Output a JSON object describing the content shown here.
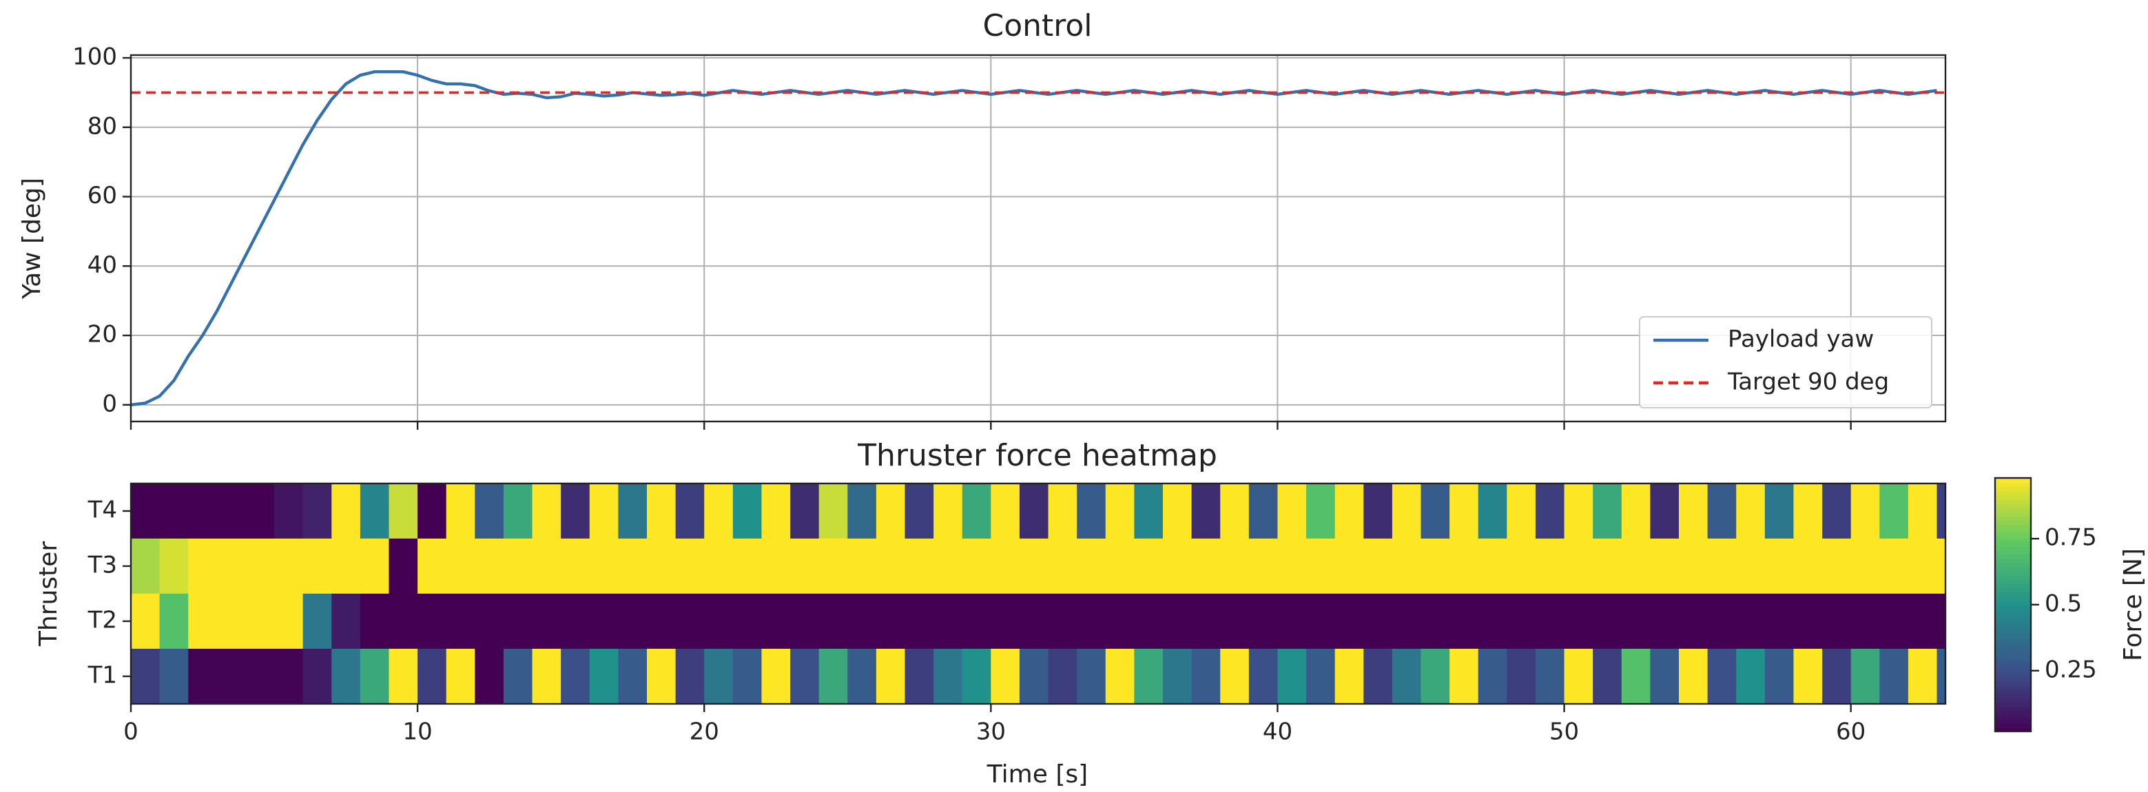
{
  "chart_data": [
    {
      "type": "line",
      "title": "Control",
      "ylabel": "Yaw [deg]",
      "xlim": [
        0,
        63.3
      ],
      "ylim": [
        -4.8,
        100.8
      ],
      "xticks": [
        0,
        10,
        20,
        30,
        40,
        50,
        60
      ],
      "yticks": [
        0,
        20,
        40,
        60,
        80,
        100
      ],
      "grid": true,
      "legend": "lower right",
      "series": [
        {
          "name": "Payload yaw",
          "color": "#3271ad",
          "linestyle": "solid",
          "x": [
            0,
            0.5,
            1,
            1.5,
            2,
            2.5,
            3,
            3.5,
            4,
            4.5,
            5,
            5.5,
            6,
            6.5,
            7,
            7.5,
            8,
            8.5,
            9,
            9.5,
            10,
            10.5,
            11,
            11.5,
            12,
            12.5,
            13,
            13.5,
            14,
            14.5,
            15,
            15.5,
            16,
            16.5,
            17,
            17.5,
            18,
            18.5,
            19,
            19.5,
            20,
            21,
            22,
            23,
            24,
            25,
            26,
            27,
            28,
            29,
            30,
            31,
            32,
            33,
            34,
            35,
            36,
            37,
            38,
            39,
            40,
            41,
            42,
            43,
            44,
            45,
            46,
            47,
            48,
            49,
            50,
            51,
            52,
            53,
            54,
            55,
            56,
            57,
            58,
            59,
            60,
            61,
            62,
            63
          ],
          "values": [
            0,
            0.5,
            2.5,
            7,
            14,
            20,
            27,
            35,
            43,
            51,
            59,
            67,
            75,
            82,
            88,
            92.5,
            95,
            96,
            96,
            96,
            95,
            93.5,
            92.5,
            92.5,
            92,
            90.5,
            89.5,
            89.8,
            89.5,
            88.5,
            88.8,
            89.8,
            89.5,
            89,
            89.3,
            90,
            89.6,
            89.2,
            89.4,
            89.8,
            89.2,
            90.6,
            89.5,
            90.6,
            89.5,
            90.6,
            89.5,
            90.6,
            89.5,
            90.6,
            89.5,
            90.6,
            89.5,
            90.6,
            89.5,
            90.6,
            89.5,
            90.6,
            89.5,
            90.6,
            89.5,
            90.6,
            89.5,
            90.6,
            89.5,
            90.6,
            89.5,
            90.6,
            89.5,
            90.6,
            89.5,
            90.6,
            89.5,
            90.6,
            89.5,
            90.6,
            89.5,
            90.6,
            89.5,
            90.6,
            89.5,
            90.6,
            89.5,
            90.6
          ]
        },
        {
          "name": "Target 90 deg",
          "color": "#e8251f",
          "linestyle": "dashed",
          "x": [
            0,
            63.3
          ],
          "values": [
            90,
            90
          ]
        }
      ]
    },
    {
      "type": "heatmap",
      "title": "Thruster force heatmap",
      "xlabel": "Time [s]",
      "ylabel": "Thruster",
      "xlim": [
        0,
        63.3
      ],
      "xticks": [
        0,
        10,
        20,
        30,
        40,
        50,
        60
      ],
      "rows": [
        "T1",
        "T2",
        "T3",
        "T4"
      ],
      "colormap": "viridis",
      "clim": [
        0.02,
        0.98
      ],
      "colorbar_label": "Force [N]",
      "colorbar_ticks": [
        0.25,
        0.5,
        0.75
      ],
      "bins": [
        0,
        1,
        2,
        3,
        4,
        5,
        6,
        7,
        8,
        9,
        10,
        11,
        12,
        13,
        14,
        15,
        16,
        17,
        18,
        19,
        20,
        21,
        22,
        23,
        24,
        25,
        26,
        27,
        28,
        29,
        30,
        31,
        32,
        33,
        34,
        35,
        36,
        37,
        38,
        39,
        40,
        41,
        42,
        43,
        44,
        45,
        46,
        47,
        48,
        49,
        50,
        51,
        52,
        53,
        54,
        55,
        56,
        57,
        58,
        59,
        60,
        61,
        62,
        63,
        63.3
      ],
      "z": [
        [
          0.2,
          0.3,
          0.03,
          0.03,
          0.03,
          0.03,
          0.1,
          0.4,
          0.6,
          0.98,
          0.2,
          0.98,
          0.02,
          0.3,
          0.98,
          0.25,
          0.5,
          0.3,
          0.98,
          0.2,
          0.4,
          0.3,
          0.98,
          0.25,
          0.6,
          0.3,
          0.98,
          0.2,
          0.4,
          0.5,
          0.98,
          0.3,
          0.2,
          0.3,
          0.98,
          0.6,
          0.4,
          0.3,
          0.98,
          0.25,
          0.5,
          0.3,
          0.98,
          0.2,
          0.4,
          0.6,
          0.98,
          0.3,
          0.2,
          0.3,
          0.98,
          0.2,
          0.7,
          0.3,
          0.98,
          0.25,
          0.5,
          0.3,
          0.98,
          0.2,
          0.6,
          0.3,
          0.98,
          0.3
        ],
        [
          0.98,
          0.7,
          0.98,
          0.98,
          0.98,
          0.98,
          0.4,
          0.1,
          0.02,
          0.02,
          0.02,
          0.02,
          0.02,
          0.02,
          0.02,
          0.02,
          0.02,
          0.02,
          0.02,
          0.02,
          0.02,
          0.02,
          0.02,
          0.02,
          0.02,
          0.02,
          0.02,
          0.02,
          0.02,
          0.02,
          0.02,
          0.02,
          0.02,
          0.02,
          0.02,
          0.02,
          0.02,
          0.02,
          0.02,
          0.02,
          0.02,
          0.02,
          0.02,
          0.02,
          0.02,
          0.02,
          0.02,
          0.02,
          0.02,
          0.02,
          0.02,
          0.02,
          0.02,
          0.02,
          0.02,
          0.02,
          0.02,
          0.02,
          0.02,
          0.02,
          0.02,
          0.02,
          0.02,
          0.02
        ],
        [
          0.85,
          0.92,
          0.98,
          0.98,
          0.98,
          0.98,
          0.98,
          0.98,
          0.98,
          0.02,
          0.98,
          0.98,
          0.98,
          0.98,
          0.98,
          0.98,
          0.98,
          0.98,
          0.98,
          0.98,
          0.98,
          0.98,
          0.98,
          0.98,
          0.98,
          0.98,
          0.98,
          0.98,
          0.98,
          0.98,
          0.98,
          0.98,
          0.98,
          0.98,
          0.98,
          0.98,
          0.98,
          0.98,
          0.98,
          0.98,
          0.98,
          0.98,
          0.98,
          0.98,
          0.98,
          0.98,
          0.98,
          0.98,
          0.98,
          0.98,
          0.98,
          0.98,
          0.98,
          0.98,
          0.98,
          0.98,
          0.98,
          0.98,
          0.98,
          0.98,
          0.98,
          0.98,
          0.98,
          0.98
        ],
        [
          0.02,
          0.02,
          0.02,
          0.02,
          0.02,
          0.08,
          0.12,
          0.98,
          0.45,
          0.9,
          0.02,
          0.98,
          0.3,
          0.6,
          0.98,
          0.15,
          0.98,
          0.4,
          0.98,
          0.2,
          0.98,
          0.5,
          0.98,
          0.15,
          0.9,
          0.35,
          0.98,
          0.2,
          0.98,
          0.6,
          0.98,
          0.15,
          0.98,
          0.3,
          0.98,
          0.45,
          0.98,
          0.15,
          0.98,
          0.3,
          0.98,
          0.7,
          0.98,
          0.15,
          0.98,
          0.3,
          0.98,
          0.45,
          0.98,
          0.2,
          0.98,
          0.6,
          0.98,
          0.15,
          0.98,
          0.3,
          0.98,
          0.4,
          0.98,
          0.2,
          0.98,
          0.7,
          0.98,
          0.2
        ]
      ]
    }
  ]
}
